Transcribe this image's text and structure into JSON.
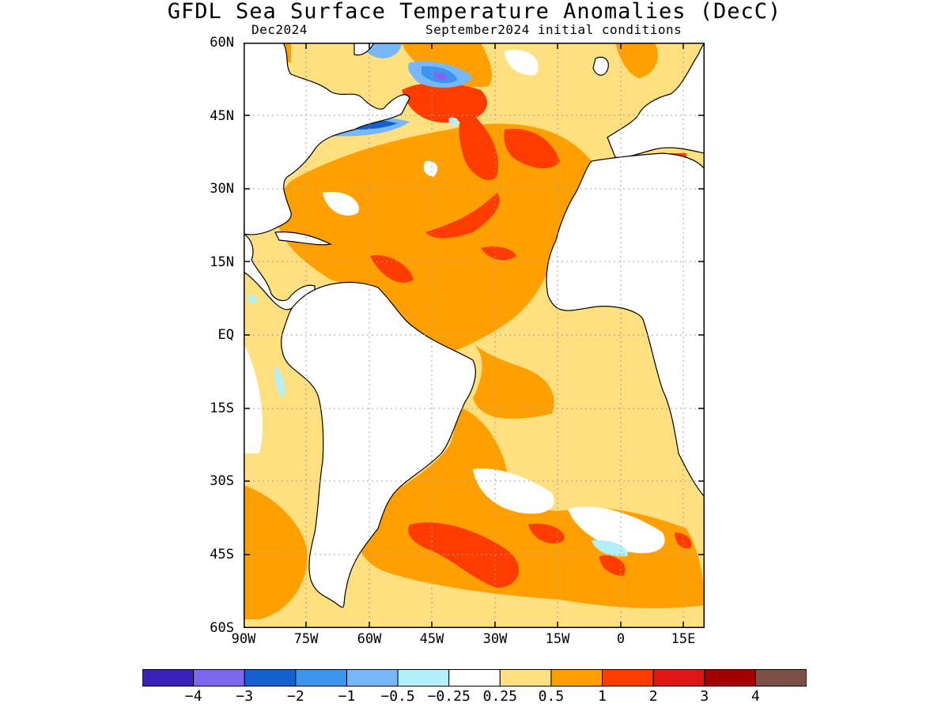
{
  "title": "GFDL Sea Surface Temperature Anomalies (DecC)",
  "subtitle_left": "Dec2024",
  "subtitle_right": "September2024 initial conditions",
  "y_ticks": [
    "60N",
    "45N",
    "30N",
    "15N",
    "EQ",
    "15S",
    "30S",
    "45S",
    "60S"
  ],
  "x_ticks": [
    "90W",
    "75W",
    "60W",
    "45W",
    "30W",
    "15W",
    "0",
    "15E"
  ],
  "colorbar": {
    "colors": [
      "#3a22b8",
      "#7b68ee",
      "#1560d0",
      "#3c96f0",
      "#78b8fa",
      "#b4f0fa",
      "#ffffff",
      "#ffe080",
      "#ffa000",
      "#ff3c00",
      "#e01414",
      "#a50000",
      "#7c5044"
    ],
    "labels": [
      "−4",
      "−3",
      "−2",
      "−1",
      "−0.5",
      "−0.25",
      "0.25",
      "0.5",
      "1",
      "2",
      "3",
      "4"
    ]
  },
  "map": {
    "lon_range": [
      -90,
      20
    ],
    "lat_range": [
      -60,
      60
    ],
    "land_color": "#ffffff",
    "coast_color": "#000000",
    "grid_color": "#a0a0a0"
  }
}
